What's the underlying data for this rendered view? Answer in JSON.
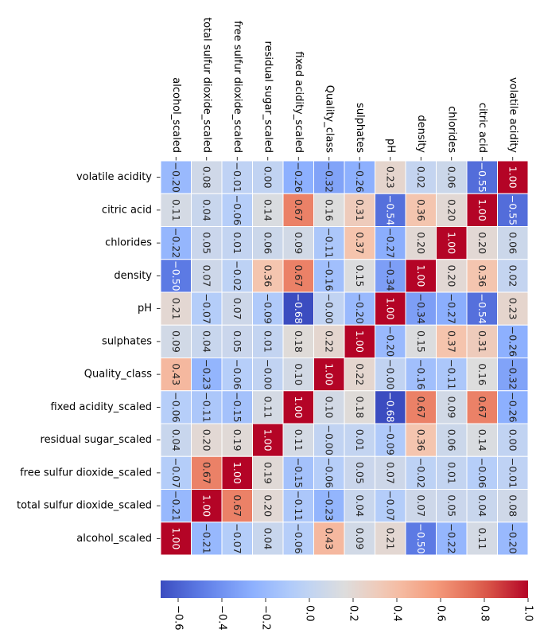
{
  "chart_data": {
    "type": "heatmap",
    "rows": [
      "volatile acidity",
      "citric acid",
      "chlorides",
      "density",
      "pH",
      "sulphates",
      "Quality_class",
      "fixed acidity_scaled",
      "residual sugar_scaled",
      "free sulfur dioxide_scaled",
      "total sulfur dioxide_scaled",
      "alcohol_scaled"
    ],
    "columns": [
      "alcohol_scaled",
      "total sulfur dioxide_scaled",
      "free sulfur dioxide_scaled",
      "residual sugar_scaled",
      "fixed acidity_scaled",
      "Quality_class",
      "sulphates",
      "pH",
      "density",
      "chlorides",
      "citric acid",
      "volatile acidity"
    ],
    "values": [
      [
        -0.2,
        0.08,
        -0.01,
        0.0,
        -0.26,
        -0.32,
        -0.26,
        0.23,
        0.02,
        0.06,
        -0.55,
        1.0
      ],
      [
        0.11,
        0.04,
        -0.06,
        0.14,
        0.67,
        0.16,
        0.31,
        -0.54,
        0.36,
        0.2,
        1.0,
        -0.55
      ],
      [
        -0.22,
        0.05,
        0.01,
        0.06,
        0.09,
        -0.11,
        0.37,
        -0.27,
        0.2,
        1.0,
        0.2,
        0.06
      ],
      [
        -0.5,
        0.07,
        -0.02,
        0.36,
        0.67,
        -0.16,
        0.15,
        -0.34,
        1.0,
        0.2,
        0.36,
        0.02
      ],
      [
        0.21,
        -0.07,
        0.07,
        -0.09,
        -0.68,
        -0.0,
        -0.2,
        1.0,
        -0.34,
        -0.27,
        -0.54,
        0.23
      ],
      [
        0.09,
        0.04,
        0.05,
        0.01,
        0.18,
        0.22,
        1.0,
        -0.2,
        0.15,
        0.37,
        0.31,
        -0.26
      ],
      [
        0.43,
        -0.23,
        -0.06,
        -0.0,
        0.1,
        1.0,
        0.22,
        -0.0,
        -0.16,
        -0.11,
        0.16,
        -0.32
      ],
      [
        -0.06,
        -0.11,
        -0.15,
        0.11,
        1.0,
        0.1,
        0.18,
        -0.68,
        0.67,
        0.09,
        0.67,
        -0.26
      ],
      [
        0.04,
        0.2,
        0.19,
        1.0,
        0.11,
        -0.0,
        0.01,
        -0.09,
        0.36,
        0.06,
        0.14,
        0.0
      ],
      [
        -0.07,
        0.67,
        1.0,
        0.19,
        -0.15,
        -0.06,
        0.05,
        0.07,
        -0.02,
        0.01,
        -0.06,
        -0.01
      ],
      [
        -0.21,
        1.0,
        0.67,
        0.2,
        -0.11,
        -0.23,
        0.04,
        -0.07,
        0.07,
        0.05,
        0.04,
        0.08
      ],
      [
        1.0,
        -0.21,
        -0.07,
        0.04,
        -0.06,
        0.43,
        0.09,
        0.21,
        -0.5,
        -0.22,
        0.11,
        -0.2
      ]
    ],
    "colormap": "coolwarm",
    "vmin": -0.68,
    "vmax": 1.0,
    "colorbar": {
      "orientation": "horizontal",
      "placement": "bottom",
      "ticks": [
        -0.6,
        -0.4,
        -0.2,
        0.0,
        0.2,
        0.4,
        0.6,
        0.8,
        1.0
      ],
      "tick_labels": [
        "−0.6",
        "−0.4",
        "−0.2",
        "0.0",
        "0.2",
        "0.4",
        "0.6",
        "0.8",
        "1.0"
      ]
    },
    "annotation_format": "2 decimals",
    "text_rotation": "90 degrees clockwise",
    "title": "",
    "xlabel": "",
    "ylabel": ""
  }
}
